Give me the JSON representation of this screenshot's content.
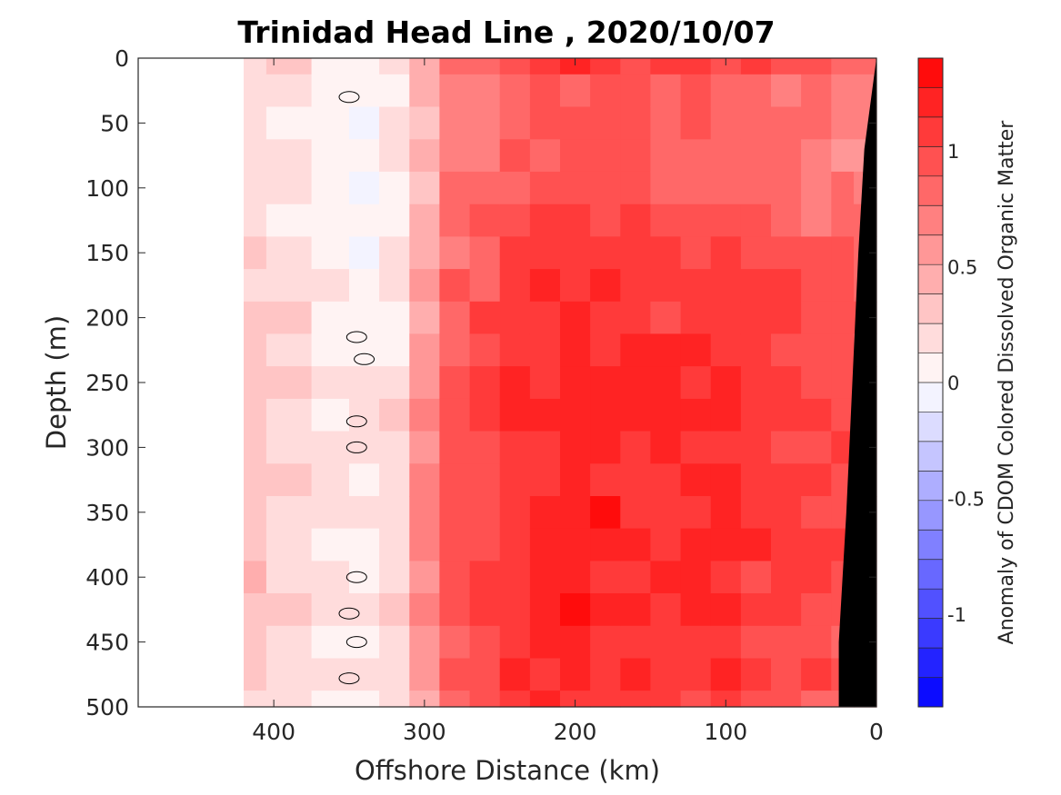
{
  "chart_data": {
    "type": "heatmap",
    "title": "Trinidad Head Line , 2020/10/07",
    "xlabel": "Offshore Distance (km)",
    "ylabel": "Depth (m)",
    "xlim": [
      490,
      0
    ],
    "ylim": [
      0,
      500
    ],
    "x_reversed": true,
    "y_reversed": true,
    "xticks": [
      400,
      300,
      200,
      100,
      0
    ],
    "xtick_labels": [
      "400",
      "300",
      "200",
      "100",
      "0"
    ],
    "yticks": [
      0,
      50,
      100,
      150,
      200,
      250,
      300,
      350,
      400,
      450,
      500
    ],
    "ytick_labels": [
      "0",
      "50",
      "100",
      "150",
      "200",
      "250",
      "300",
      "350",
      "400",
      "450",
      "500"
    ],
    "colorbar": {
      "label": "Anomaly of CDOM Colored Dissolved Organic Matter",
      "limits": [
        -1.4,
        1.4
      ],
      "levels": 22,
      "ticks": [
        -1,
        -0.5,
        0,
        0.5,
        1
      ],
      "tick_labels": [
        "-1",
        "-0.5",
        "0",
        "0.5",
        "1"
      ],
      "colormap": "blue-white-red",
      "low_color": "#0000ff",
      "mid_color": "#ffffff",
      "high_color": "#ff0000"
    },
    "grid": false,
    "field": {
      "distance_km": [
        420,
        390,
        360,
        340,
        320,
        300,
        280,
        260,
        240,
        220,
        200,
        180,
        160,
        140,
        120,
        100,
        80,
        60,
        40,
        20,
        10
      ],
      "depth_m": [
        0,
        25,
        50,
        75,
        100,
        125,
        150,
        175,
        200,
        225,
        250,
        275,
        300,
        325,
        350,
        375,
        400,
        425,
        450,
        475,
        500
      ],
      "anomaly_profile_by_distance": [
        0.25,
        0.18,
        0.08,
        0.05,
        0.15,
        0.45,
        0.75,
        0.85,
        0.95,
        1.0,
        1.02,
        1.0,
        0.98,
        0.95,
        0.95,
        0.92,
        0.9,
        0.88,
        0.82,
        0.78,
        0.75
      ],
      "anomaly_depth_adjustment": [
        0.05,
        -0.1,
        -0.1,
        -0.08,
        -0.05,
        0.0,
        0.05,
        0.12,
        0.12,
        0.15,
        0.18,
        0.18,
        0.2,
        0.2,
        0.2,
        0.2,
        0.18,
        0.18,
        0.15,
        0.15,
        0.12
      ],
      "data_start_km": 420
    },
    "bathymetry": {
      "color": "#000000",
      "bottom_km": [
        0,
        8,
        12,
        16,
        20,
        25,
        25
      ],
      "bottom_depth_m": [
        0,
        70,
        150,
        250,
        350,
        450,
        500
      ]
    },
    "contour_zero_color": "#000000"
  }
}
